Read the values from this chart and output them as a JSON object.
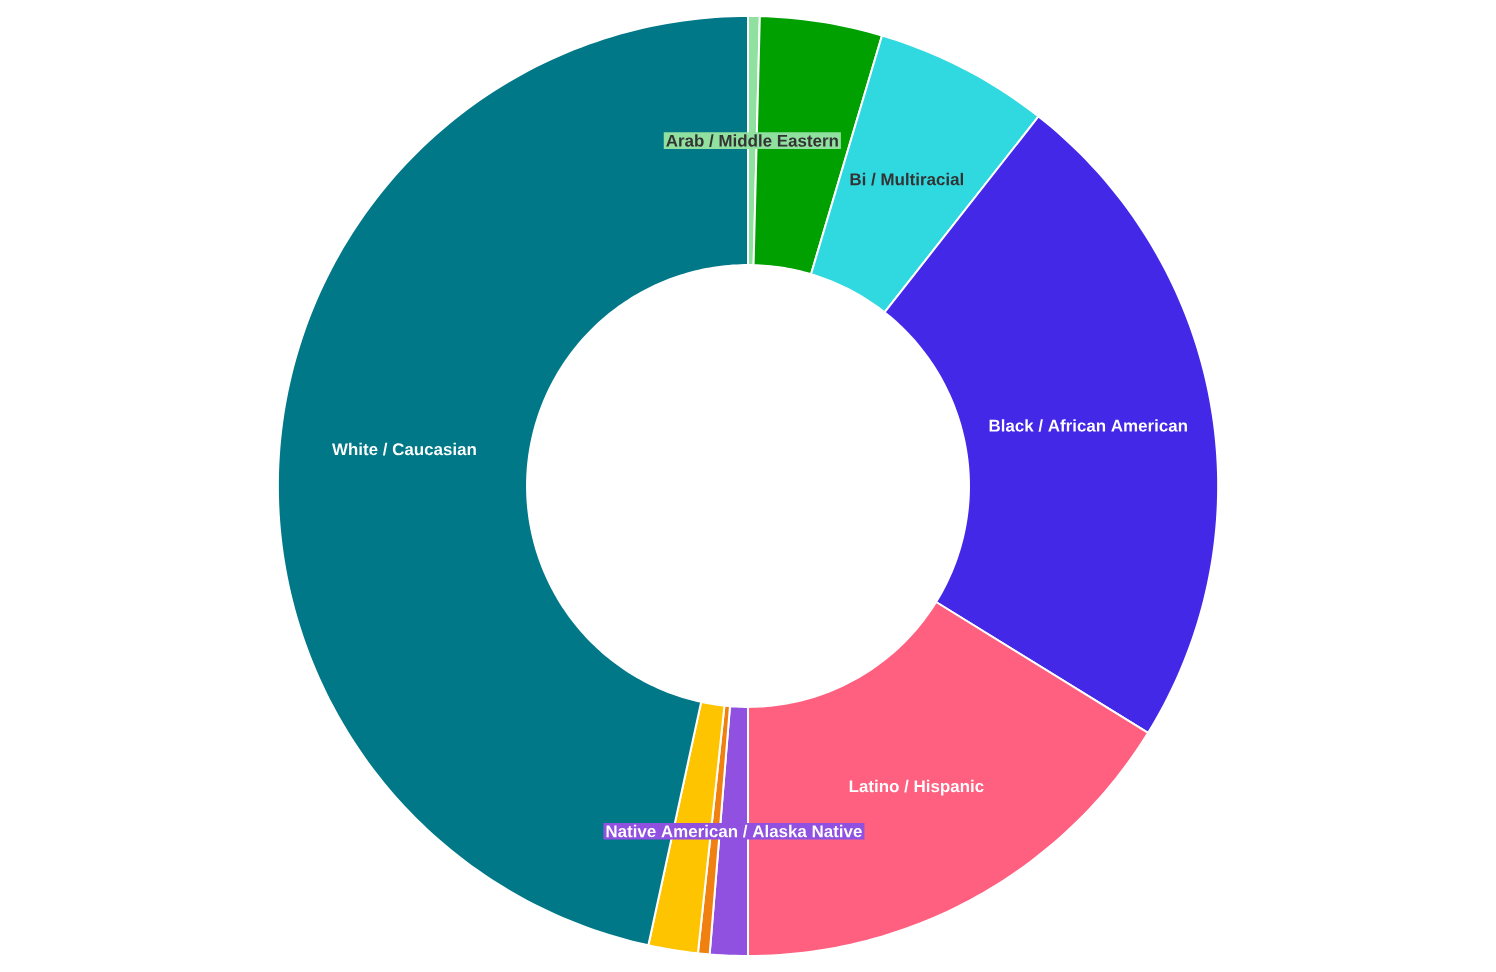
{
  "chart_data": {
    "type": "donut",
    "categories": [
      "Arab / Middle Eastern",
      null,
      "Bi / Multiracial",
      "Black / African American",
      "Latino / Hispanic",
      "Native American / Alaska Native",
      null,
      null,
      "White / Caucasian"
    ],
    "values": [
      0.4,
      4.2,
      6.0,
      23.2,
      16.2,
      1.3,
      0.4,
      1.7,
      46.6
    ],
    "colors": [
      "#90e0a0",
      "#00a000",
      "#30d8e0",
      "#4428e8",
      "#ff6080",
      "#9050e0",
      "#f08010",
      "#ffc400",
      "#007888"
    ]
  }
}
